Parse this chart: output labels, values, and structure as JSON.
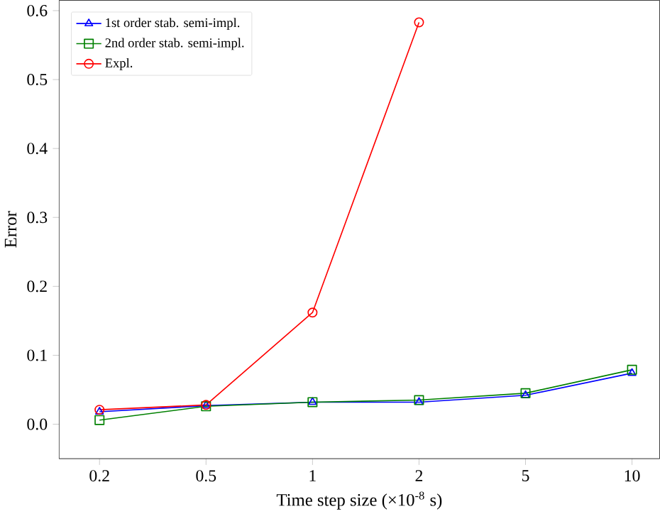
{
  "chart_data": {
    "type": "line",
    "xlabel": "Time step size (×10$^{-8}$ s)",
    "ylabel": "Error",
    "categories": [
      "0.2",
      "0.5",
      "1",
      "2",
      "5",
      "10"
    ],
    "series": [
      {
        "name": "1st order stab. semi-impl.",
        "color": "#0000ff",
        "marker": "triangle",
        "values": [
          0.018,
          0.027,
          0.032,
          0.032,
          0.042,
          0.074
        ]
      },
      {
        "name": "2nd order stab. semi-impl.",
        "color": "#008000",
        "marker": "square",
        "values": [
          0.006,
          0.026,
          0.032,
          0.035,
          0.045,
          0.079
        ]
      },
      {
        "name": "Expl.",
        "color": "#ff0000",
        "marker": "circle",
        "values": [
          0.021,
          0.028,
          0.162,
          0.583,
          null,
          null
        ]
      }
    ],
    "ylim": [
      -0.05,
      0.615
    ],
    "yticks": [
      {
        "value": 0,
        "label": "0.0"
      },
      0.1,
      0.2,
      0.3,
      0.4,
      0.5,
      0.6
    ],
    "legend": "top left",
    "grid": false,
    "line_style": "solid"
  }
}
